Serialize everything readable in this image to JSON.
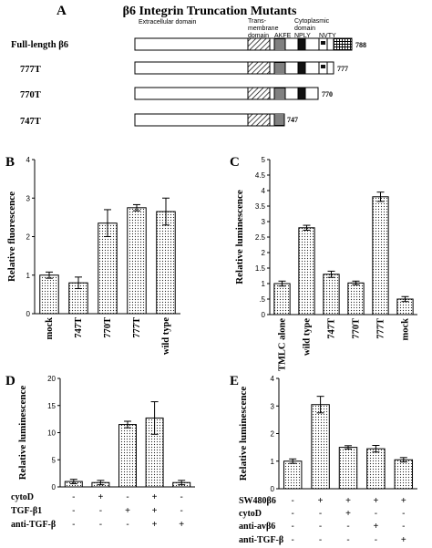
{
  "panels": {
    "A": {
      "letter": "A",
      "title": "β6 Integrin Truncation Mutants"
    },
    "B": {
      "letter": "B"
    },
    "C": {
      "letter": "C"
    },
    "D": {
      "letter": "D"
    },
    "E": {
      "letter": "E"
    }
  },
  "diagram": {
    "domain_labels": {
      "extracellular": "Extracellular domain",
      "transmembrane_1": "Trans-",
      "transmembrane_2": "membrane",
      "transmembrane_3": "domain",
      "cytoplasmic_1": "Cytoplasmic",
      "cytoplasmic_2": "domain",
      "akfe": "AKFE",
      "nply": "NPLY",
      "nvty": "NVTY"
    },
    "constructs": [
      {
        "name": "Full-length β6",
        "end_label": "788",
        "end_residue": 788
      },
      {
        "name": "777T",
        "end_label": "777",
        "end_residue": 777
      },
      {
        "name": "770T",
        "end_label": "770",
        "end_residue": 770
      },
      {
        "name": "747T",
        "end_label": "747",
        "end_residue": 747
      }
    ]
  },
  "chart_data": [
    {
      "panel": "B",
      "type": "bar",
      "ylabel": "Relative fluorescence",
      "ylim": [
        0,
        4
      ],
      "yticks": [
        "0",
        "1",
        "2",
        "3",
        "4"
      ],
      "categories": [
        "mock",
        "747T",
        "770T",
        "777T",
        "wild type"
      ],
      "values": [
        1.0,
        0.8,
        2.35,
        2.75,
        2.65
      ],
      "errors": [
        0.08,
        0.15,
        0.35,
        0.08,
        0.35
      ]
    },
    {
      "panel": "C",
      "type": "bar",
      "ylabel": "Relative luminescence",
      "ylim": [
        0,
        5
      ],
      "yticks": [
        "0",
        ".5",
        "1",
        "1.5",
        "2",
        "2.5",
        "3",
        "3.5",
        "4",
        "4.5",
        "5"
      ],
      "categories": [
        "TMLC alone",
        "wild type",
        "747T",
        "770T",
        "777T",
        "mock"
      ],
      "values": [
        1.0,
        2.8,
        1.3,
        1.02,
        3.8,
        0.5
      ],
      "errors": [
        0.08,
        0.08,
        0.1,
        0.06,
        0.15,
        0.08
      ]
    },
    {
      "panel": "D",
      "type": "bar",
      "ylabel": "Relative luminescence",
      "ylim": [
        0,
        20
      ],
      "yticks": [
        "0",
        "5",
        "10",
        "15",
        "20"
      ],
      "values": [
        1.0,
        0.8,
        11.5,
        12.7,
        0.8
      ],
      "errors": [
        0.4,
        0.4,
        0.6,
        3.0,
        0.4
      ],
      "conditions": [
        {
          "label": "cytoD",
          "signs": [
            "-",
            "+",
            "-",
            "+",
            "-"
          ]
        },
        {
          "label": "TGF-β1",
          "signs": [
            "-",
            "-",
            "+",
            "+",
            "-"
          ]
        },
        {
          "label": "anti-TGF-β",
          "signs": [
            "-",
            "-",
            "-",
            "+",
            "+"
          ]
        }
      ]
    },
    {
      "panel": "E",
      "type": "bar",
      "ylabel": "Relative luminescence",
      "ylim": [
        0,
        4
      ],
      "yticks": [
        "0",
        "1",
        "2",
        "3",
        "4"
      ],
      "values": [
        1.0,
        3.05,
        1.5,
        1.45,
        1.05
      ],
      "errors": [
        0.08,
        0.3,
        0.06,
        0.12,
        0.08
      ],
      "conditions": [
        {
          "label": "SW480β6",
          "signs": [
            "-",
            "+",
            "+",
            "+",
            "+"
          ]
        },
        {
          "label": "cytoD",
          "signs": [
            "-",
            "-",
            "+",
            "-",
            "-"
          ]
        },
        {
          "label": "anti-avβ6",
          "signs": [
            "-",
            "-",
            "-",
            "+",
            "-"
          ]
        },
        {
          "label": "anti-TGF-β",
          "signs": [
            "-",
            "-",
            "-",
            "-",
            "+"
          ]
        }
      ]
    }
  ]
}
